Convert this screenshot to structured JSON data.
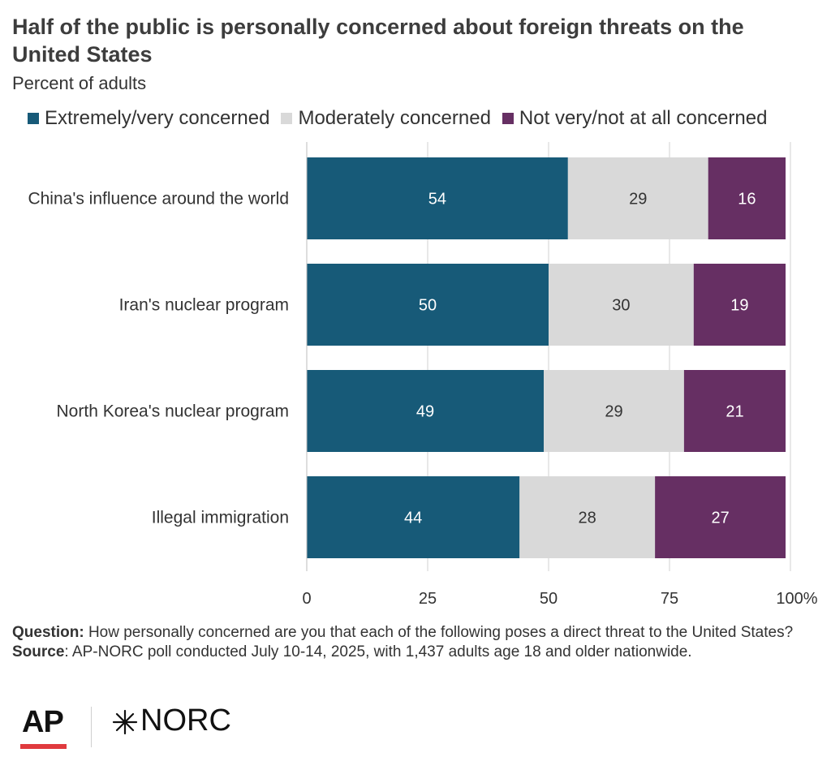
{
  "header": {
    "title": "Half of the public is personally concerned about foreign threats on the United States",
    "subtitle": "Percent of adults"
  },
  "colors": {
    "extremely": "#175a78",
    "moderately": "#d9d9d9",
    "not_very": "#662f63",
    "gridline": "#d0d0d0",
    "ap_red": "#e03a3e"
  },
  "chart_data": {
    "type": "bar",
    "orientation": "horizontal",
    "stacked": true,
    "categories": [
      "China's influence around the world",
      "Iran's nuclear program",
      "North Korea's nuclear program",
      "Illegal immigration"
    ],
    "series": [
      {
        "name": "Extremely/very concerned",
        "values": [
          54,
          50,
          49,
          44
        ]
      },
      {
        "name": "Moderately concerned",
        "values": [
          29,
          30,
          29,
          28
        ]
      },
      {
        "name": "Not very/not at all concerned",
        "values": [
          16,
          19,
          21,
          27
        ]
      }
    ],
    "xlim": [
      0,
      100
    ],
    "xticks": [
      "0",
      "25",
      "50",
      "75",
      "100%"
    ],
    "grid": true,
    "legend_position": "top-left"
  },
  "footer": {
    "question_label": "Question:",
    "question_text": " How personally concerned are you that each of the following poses a direct threat to the United States?",
    "source_label": "Source",
    "source_text": ": AP-NORC poll conducted July 10-14, 2025, with 1,437 adults age 18 and older nationwide."
  },
  "logos": {
    "ap": "AP",
    "norc": "NORC",
    "norc_mark_icon": "asterisk-star-icon"
  }
}
